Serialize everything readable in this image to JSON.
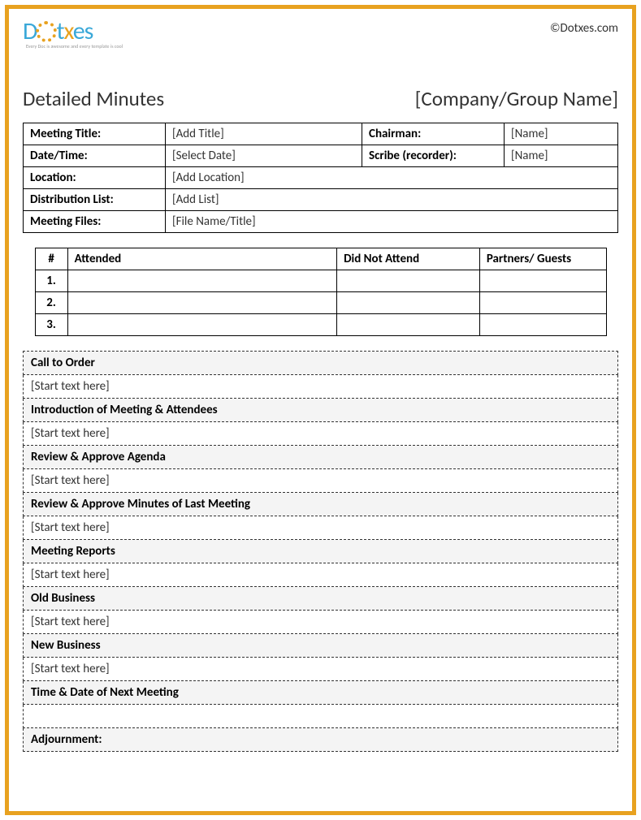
{
  "brand": {
    "name_pre": "D",
    "name_post": "txes",
    "tagline": "Every Doc is awesome and every template is cool",
    "copyright": "©Dotxes.com"
  },
  "header": {
    "title": "Detailed Minutes",
    "company": "[Company/Group Name]"
  },
  "meta": {
    "rows": [
      {
        "l1": "Meeting Title:",
        "v1": "[Add Title]",
        "l2": "Chairman:",
        "v2": "[Name]"
      },
      {
        "l1": "Date/Time:",
        "v1": "[Select Date]",
        "l2": "Scribe (recorder):",
        "v2": "[Name]"
      },
      {
        "l1": "Location:",
        "v1": "[Add Location]",
        "l2": "",
        "v2": ""
      },
      {
        "l1": "Distribution List:",
        "v1": "[Add List]",
        "l2": "",
        "v2": ""
      },
      {
        "l1": "Meeting Files:",
        "v1": "[File Name/Title]",
        "l2": "",
        "v2": ""
      }
    ]
  },
  "attendance": {
    "headers": {
      "num": "#",
      "attended": "Attended",
      "dna": "Did Not Attend",
      "pg": "Partners/ Guests"
    },
    "rows": [
      {
        "num": "1.",
        "attended": "",
        "dna": "",
        "pg": ""
      },
      {
        "num": "2.",
        "attended": "",
        "dna": "",
        "pg": ""
      },
      {
        "num": "3.",
        "attended": "",
        "dna": "",
        "pg": ""
      }
    ]
  },
  "sections": [
    {
      "title": "Call to Order",
      "body": "[Start text here]"
    },
    {
      "title": "Introduction of Meeting & Attendees",
      "body": "[Start text here]"
    },
    {
      "title": "Review & Approve Agenda",
      "body": "[Start text here]"
    },
    {
      "title": "Review & Approve Minutes of Last Meeting",
      "body": "[Start text here]"
    },
    {
      "title": "Meeting Reports",
      "body": "[Start text here]"
    },
    {
      "title": "Old Business",
      "body": "[Start text here]"
    },
    {
      "title": "New Business",
      "body": "[Start text here]"
    },
    {
      "title": "Time & Date of Next Meeting",
      "body": ""
    },
    {
      "title": "Adjournment:",
      "body": null
    }
  ],
  "style": {
    "border_color": "#e8a220",
    "logo_blue": "#3aa8d8",
    "section_bg": "#f4f4f4",
    "font": "Calibri"
  }
}
